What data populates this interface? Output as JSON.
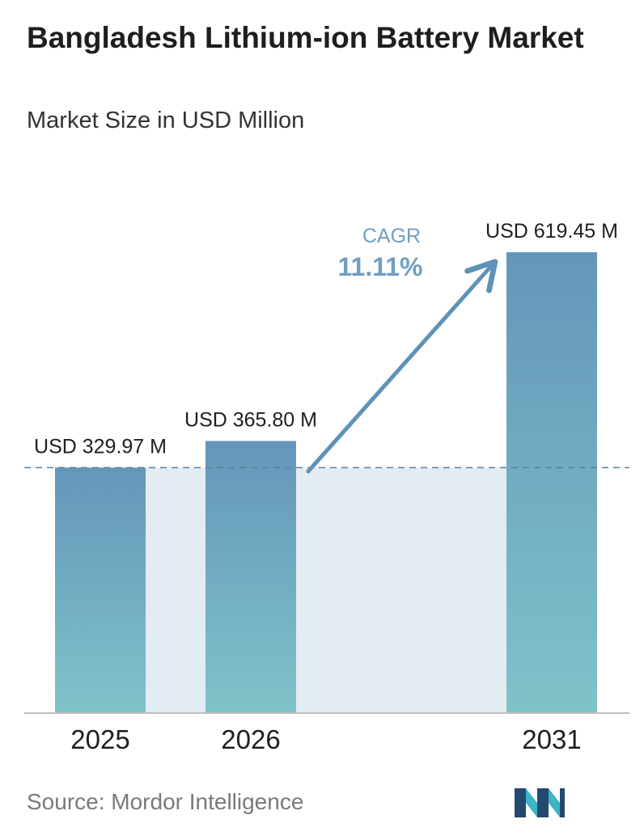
{
  "header": {
    "title": "Bangladesh Lithium-ion Battery Market",
    "subtitle": "Market Size in USD Million"
  },
  "chart_data": {
    "type": "bar",
    "categories": [
      "2025",
      "2026",
      "2031"
    ],
    "values": [
      329.97,
      365.8,
      619.45
    ],
    "value_labels": [
      "USD 329.97 M",
      "USD 365.80 M",
      "USD 619.45 M"
    ],
    "ylim": [
      0,
      619.45
    ],
    "grid": false,
    "annotation": {
      "label": "CAGR",
      "value": "11.11%"
    }
  },
  "footer": {
    "source": "Source: Mordor Intelligence"
  },
  "colors": {
    "bar_top": "#6496ba",
    "bar_bottom": "#7fc3c9",
    "band": "#e3ebf3",
    "arrow": "#5f92b6",
    "cagr_text": "#6f9fc4",
    "logo_dark": "#234a6e",
    "logo_light": "#3db5c4"
  }
}
